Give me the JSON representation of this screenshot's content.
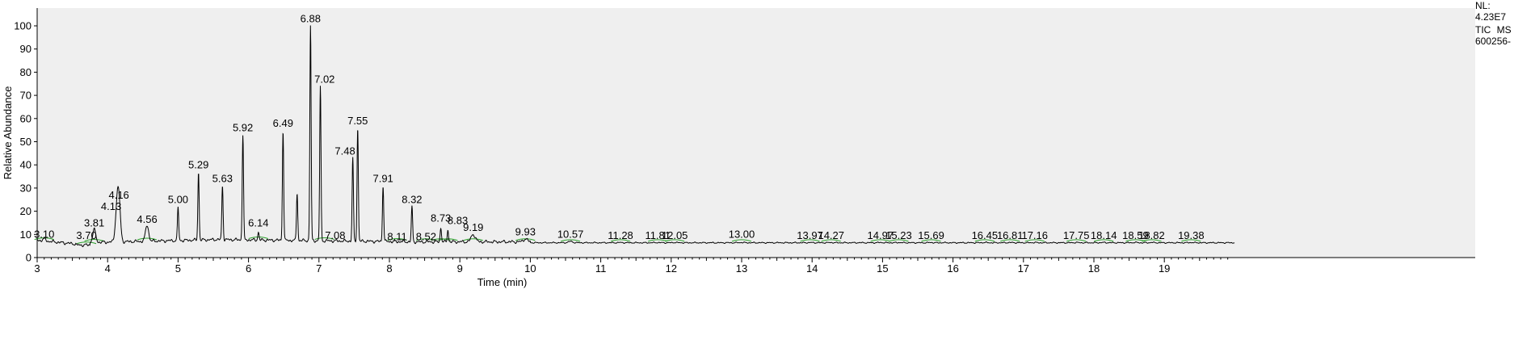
{
  "info_lines": [
    "NL:",
    "4.23E7",
    "TIC  MS",
    "600256-"
  ],
  "chart_data": {
    "type": "line",
    "xlabel": "Time (min)",
    "ylabel": "Relative Abundance",
    "xlim": [
      3,
      20
    ],
    "ylim": [
      0,
      105
    ],
    "xticks": [
      3,
      4,
      5,
      6,
      7,
      8,
      9,
      10,
      11,
      12,
      13,
      14,
      15,
      16,
      17,
      18,
      19
    ],
    "yticks": [
      0,
      10,
      20,
      30,
      40,
      50,
      60,
      70,
      80,
      90,
      100
    ],
    "grid": false,
    "colors": {
      "trace": "#000000",
      "integration": "#2ca02c",
      "plot_bg": "#efefef",
      "axis": "#000000"
    },
    "peaks": [
      {
        "rt": 3.1,
        "height": 8
      },
      {
        "rt": 3.7,
        "height": 5
      },
      {
        "rt": 3.81,
        "height": 12
      },
      {
        "rt": 4.13,
        "height": 19
      },
      {
        "rt": 4.16,
        "height": 24
      },
      {
        "rt": 4.56,
        "height": 14
      },
      {
        "rt": 5.0,
        "height": 22
      },
      {
        "rt": 5.29,
        "height": 37
      },
      {
        "rt": 5.63,
        "height": 31
      },
      {
        "rt": 5.92,
        "height": 53
      },
      {
        "rt": 6.14,
        "height": 11
      },
      {
        "rt": 6.49,
        "height": 55
      },
      {
        "rt": 6.69,
        "height": 28
      },
      {
        "rt": 6.88,
        "height": 100
      },
      {
        "rt": 7.02,
        "height": 74
      },
      {
        "rt": 7.08,
        "height": 7
      },
      {
        "rt": 7.48,
        "height": 43
      },
      {
        "rt": 7.55,
        "height": 56
      },
      {
        "rt": 7.91,
        "height": 31
      },
      {
        "rt": 8.11,
        "height": 6
      },
      {
        "rt": 8.32,
        "height": 22
      },
      {
        "rt": 8.52,
        "height": 6
      },
      {
        "rt": 8.73,
        "height": 13
      },
      {
        "rt": 8.83,
        "height": 12
      },
      {
        "rt": 9.19,
        "height": 10
      },
      {
        "rt": 9.93,
        "height": 8
      },
      {
        "rt": 10.57,
        "height": 7
      },
      {
        "rt": 11.28,
        "height": 6.5
      },
      {
        "rt": 11.81,
        "height": 6.5
      },
      {
        "rt": 12.05,
        "height": 6.5
      },
      {
        "rt": 13.0,
        "height": 6.5
      },
      {
        "rt": 13.97,
        "height": 6.5
      },
      {
        "rt": 14.27,
        "height": 6.5
      },
      {
        "rt": 14.97,
        "height": 6.5
      },
      {
        "rt": 15.23,
        "height": 6.5
      },
      {
        "rt": 15.69,
        "height": 6.5
      },
      {
        "rt": 16.45,
        "height": 6.5
      },
      {
        "rt": 16.81,
        "height": 6.5
      },
      {
        "rt": 17.16,
        "height": 6.5
      },
      {
        "rt": 17.75,
        "height": 6.5
      },
      {
        "rt": 18.14,
        "height": 6.5
      },
      {
        "rt": 18.59,
        "height": 6.5
      },
      {
        "rt": 18.82,
        "height": 6.5
      },
      {
        "rt": 19.38,
        "height": 6.5
      }
    ],
    "peak_labels": [
      {
        "text": "3.10",
        "rt": 3.1,
        "y": 8.5
      },
      {
        "text": "3.70",
        "rt": 3.7,
        "y": 8
      },
      {
        "text": "3.81",
        "rt": 3.81,
        "y": 13.5
      },
      {
        "text": "4.13",
        "rt": 4.05,
        "y": 20.5
      },
      {
        "text": "4.16",
        "rt": 4.16,
        "y": 25.5
      },
      {
        "text": "4.56",
        "rt": 4.56,
        "y": 15
      },
      {
        "text": "5.00",
        "rt": 5.0,
        "y": 23.5
      },
      {
        "text": "5.29",
        "rt": 5.29,
        "y": 38.5
      },
      {
        "text": "5.63",
        "rt": 5.63,
        "y": 32.5
      },
      {
        "text": "5.92",
        "rt": 5.92,
        "y": 54.5
      },
      {
        "text": "6.14",
        "rt": 6.14,
        "y": 13.5
      },
      {
        "text": "6.49",
        "rt": 6.49,
        "y": 56.5
      },
      {
        "text": "6.88",
        "rt": 6.88,
        "y": 101.5
      },
      {
        "text": "7.02",
        "rt": 7.08,
        "y": 75.5
      },
      {
        "text": "7.08",
        "rt": 7.23,
        "y": 8
      },
      {
        "text": "7.48",
        "rt": 7.37,
        "y": 44.5
      },
      {
        "text": "7.55",
        "rt": 7.55,
        "y": 57.5
      },
      {
        "text": "7.91",
        "rt": 7.91,
        "y": 32.5
      },
      {
        "text": "8.11",
        "rt": 8.11,
        "y": 7.5
      },
      {
        "text": "8.32",
        "rt": 8.32,
        "y": 23.5
      },
      {
        "text": "8.52",
        "rt": 8.52,
        "y": 7.5
      },
      {
        "text": "8.73",
        "rt": 8.73,
        "y": 15.5
      },
      {
        "text": "8.83",
        "rt": 8.97,
        "y": 14.5
      },
      {
        "text": "9.19",
        "rt": 9.19,
        "y": 11.5
      },
      {
        "text": "9.93",
        "rt": 9.93,
        "y": 9.5
      },
      {
        "text": "10.57",
        "rt": 10.57,
        "y": 8.5
      },
      {
        "text": "11.28",
        "rt": 11.28,
        "y": 8
      },
      {
        "text": "11.81",
        "rt": 11.81,
        "y": 8
      },
      {
        "text": "12.05",
        "rt": 12.05,
        "y": 8
      },
      {
        "text": "13.00",
        "rt": 13.0,
        "y": 8.5
      },
      {
        "text": "13.97",
        "rt": 13.97,
        "y": 8
      },
      {
        "text": "14.27",
        "rt": 14.27,
        "y": 8
      },
      {
        "text": "14.97",
        "rt": 14.97,
        "y": 8
      },
      {
        "text": "15.23",
        "rt": 15.23,
        "y": 8
      },
      {
        "text": "15.69",
        "rt": 15.69,
        "y": 8
      },
      {
        "text": "16.45",
        "rt": 16.45,
        "y": 8
      },
      {
        "text": "16.81",
        "rt": 16.81,
        "y": 8
      },
      {
        "text": "17.16",
        "rt": 17.16,
        "y": 8
      },
      {
        "text": "17.75",
        "rt": 17.75,
        "y": 8
      },
      {
        "text": "18.14",
        "rt": 18.14,
        "y": 8
      },
      {
        "text": "18.59",
        "rt": 18.59,
        "y": 8
      },
      {
        "text": "18.82",
        "rt": 18.82,
        "y": 8
      },
      {
        "text": "19.38",
        "rt": 19.38,
        "y": 8
      }
    ]
  }
}
